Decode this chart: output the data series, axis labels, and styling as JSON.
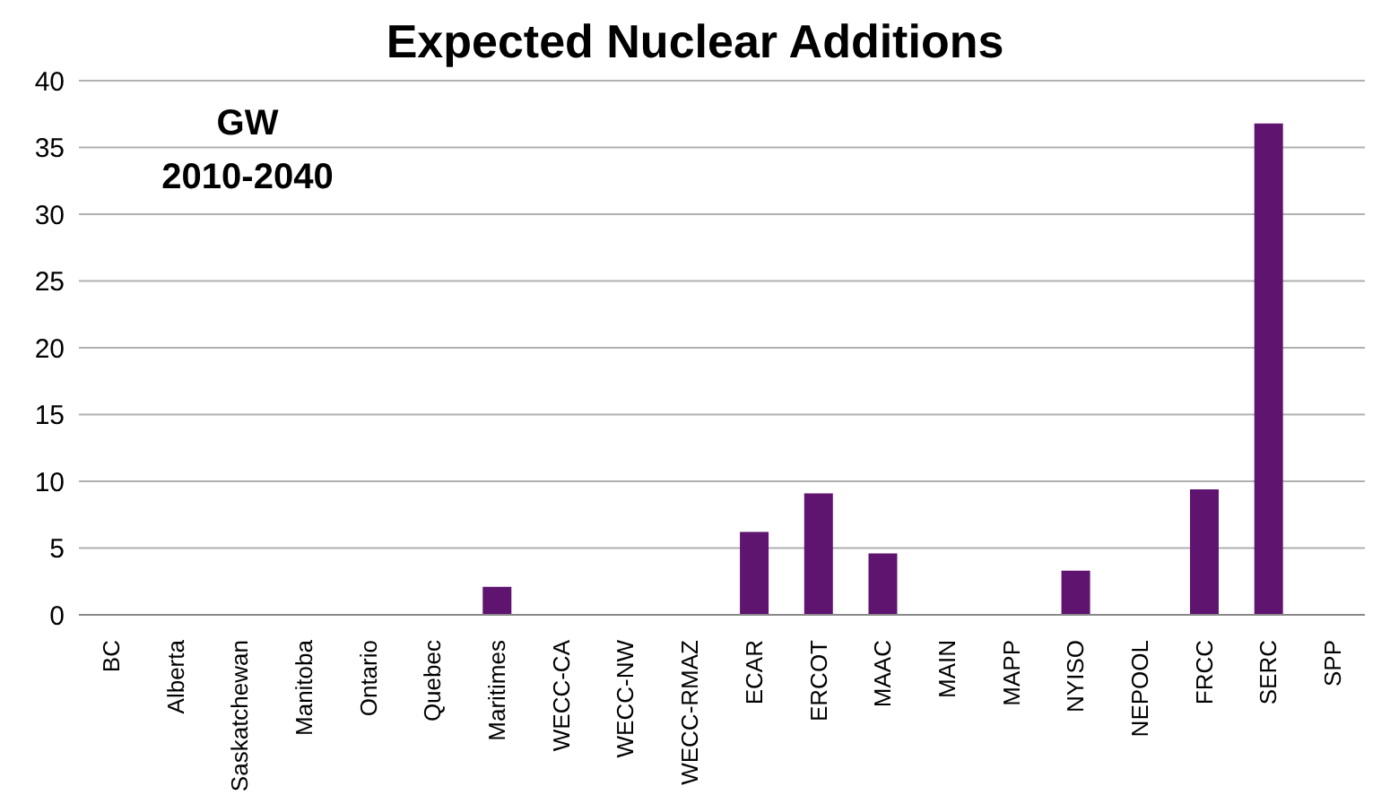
{
  "chart_data": {
    "type": "bar",
    "title": "Expected Nuclear Additions",
    "annotations": [
      "GW",
      "2010-2040"
    ],
    "categories": [
      "BC",
      "Alberta",
      "Saskatchewan",
      "Manitoba",
      "Ontario",
      "Quebec",
      "Maritimes",
      "WECC-CA",
      "WECC-NW",
      "WECC-RMAZ",
      "ECAR",
      "ERCOT",
      "MAAC",
      "MAIN",
      "MAPP",
      "NYISO",
      "NEPOOL",
      "FRCC",
      "SERC",
      "SPP"
    ],
    "values": [
      0,
      0,
      0,
      0,
      0,
      0,
      2.1,
      0,
      0,
      0,
      6.2,
      9.1,
      4.6,
      0,
      0,
      3.3,
      0,
      9.4,
      36.8,
      0
    ],
    "color": "#5f1470",
    "ylim": [
      0,
      40
    ],
    "yticks": [
      0,
      5,
      10,
      15,
      20,
      25,
      30,
      35,
      40
    ],
    "grid": "y",
    "legend": false
  }
}
